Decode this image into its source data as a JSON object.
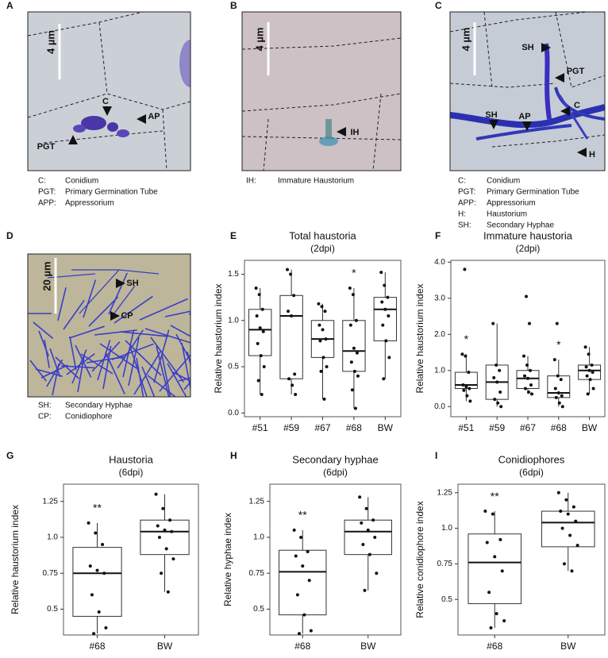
{
  "panels": [
    {
      "label": "A",
      "scale": "4 µm",
      "annotations": [
        "C",
        "AP",
        "PGT"
      ],
      "legend": [
        [
          "C:",
          "Conidium"
        ],
        [
          "PGT:",
          "Primary Germination Tube"
        ],
        [
          "APP:",
          "Appressorium"
        ]
      ]
    },
    {
      "label": "B",
      "scale": "4 µm",
      "annotations": [
        "IH"
      ],
      "legend": [
        [
          "IH:",
          "Immature Haustorium"
        ]
      ]
    },
    {
      "label": "C",
      "scale": "4 µm",
      "annotations": [
        "SH",
        "PGT",
        "C",
        "SH",
        "AP",
        "H"
      ],
      "legend": [
        [
          "C:",
          "Conidium"
        ],
        [
          "PGT:",
          "Primary Germination Tube"
        ],
        [
          "APP:",
          "Appressorium"
        ],
        [
          "H:",
          "Haustorium"
        ],
        [
          "SH:",
          "Secondary Hyphae"
        ]
      ]
    },
    {
      "label": "D",
      "scale": "20 µm",
      "annotations": [
        "SH",
        "CP"
      ],
      "legend": [
        [
          "SH:",
          "Secondary Hyphae"
        ],
        [
          "CP:",
          "Conidiophore"
        ]
      ]
    }
  ],
  "chart_data": [
    {
      "type": "box",
      "panel": "E",
      "title": "Total haustoria",
      "subtitle": "(2dpi)",
      "ylabel": "Relative haustorium index",
      "categories": [
        "#51",
        "#59",
        "#67",
        "#68",
        "BW"
      ],
      "boxes": [
        {
          "whislo": 0.2,
          "q1": 0.62,
          "med": 0.9,
          "q3": 1.12,
          "whishi": 1.35,
          "points": [
            1.35,
            1.28,
            1.12,
            1.05,
            0.92,
            0.88,
            0.75,
            0.62,
            0.5,
            0.35,
            0.2
          ]
        },
        {
          "whislo": 0.2,
          "q1": 0.37,
          "med": 1.05,
          "q3": 1.27,
          "whishi": 1.55,
          "points": [
            1.55,
            1.5,
            1.27,
            1.1,
            1.05,
            0.42,
            0.37,
            0.3,
            0.2
          ]
        },
        {
          "whislo": 0.15,
          "q1": 0.6,
          "med": 0.8,
          "q3": 1.0,
          "whishi": 1.18,
          "points": [
            1.18,
            1.15,
            1.1,
            0.95,
            0.9,
            0.8,
            0.78,
            0.6,
            0.5,
            0.45,
            0.15
          ]
        },
        {
          "whislo": 0.05,
          "q1": 0.45,
          "med": 0.67,
          "q3": 1.0,
          "whishi": 1.35,
          "points": [
            1.35,
            1.28,
            1.0,
            0.95,
            0.7,
            0.65,
            0.55,
            0.45,
            0.4,
            0.25,
            0.05
          ]
        },
        {
          "whislo": 0.37,
          "q1": 0.78,
          "med": 1.12,
          "q3": 1.25,
          "whishi": 1.52,
          "points": [
            1.52,
            1.38,
            1.25,
            1.2,
            1.12,
            1.05,
            0.95,
            0.78,
            0.6,
            0.37
          ]
        }
      ],
      "significance": [
        null,
        null,
        null,
        "*",
        null
      ],
      "significance_color": "#e0342b",
      "ylim": [
        -0.04,
        1.65
      ],
      "yticks": [
        {
          "value": 0,
          "label": "0.0"
        },
        0.5,
        {
          "value": 1,
          "label": "1.0"
        },
        1.5
      ]
    },
    {
      "type": "box",
      "panel": "F",
      "title": "Immature haustoria",
      "subtitle": "(2dpi)",
      "ylabel": "Relative haustorium index",
      "categories": [
        "#51",
        "#59",
        "#67",
        "#68",
        "BW"
      ],
      "boxes": [
        {
          "whislo": 0.15,
          "q1": 0.5,
          "med": 0.6,
          "q3": 0.95,
          "whishi": 1.45,
          "points": [
            1.45,
            1.4,
            0.95,
            0.6,
            0.55,
            0.5,
            0.45,
            0.3,
            0.15,
            3.8
          ]
        },
        {
          "whislo": 0,
          "q1": 0.2,
          "med": 0.68,
          "q3": 1.15,
          "whishi": 2.3,
          "points": [
            2.3,
            1.15,
            1.0,
            0.8,
            0.68,
            0.4,
            0.2,
            0.1,
            0
          ]
        },
        {
          "whislo": 0.35,
          "q1": 0.5,
          "med": 0.78,
          "q3": 1.0,
          "whishi": 1.4,
          "points": [
            1.4,
            1.15,
            1.0,
            0.85,
            0.78,
            0.6,
            0.5,
            0.4,
            0.35,
            3.05,
            2.3
          ]
        },
        {
          "whislo": 0,
          "q1": 0.25,
          "med": 0.38,
          "q3": 0.85,
          "whishi": 1.3,
          "points": [
            1.3,
            0.85,
            0.75,
            0.5,
            0.38,
            0.3,
            0.25,
            0.1,
            0,
            2.3
          ]
        },
        {
          "whislo": 0.35,
          "q1": 0.75,
          "med": 1.0,
          "q3": 1.15,
          "whishi": 1.65,
          "points": [
            1.65,
            1.45,
            1.15,
            1.1,
            1.0,
            0.95,
            0.85,
            0.75,
            0.5,
            0.35
          ]
        }
      ],
      "significance": [
        "*",
        null,
        null,
        "*",
        null
      ],
      "significance_color": "#e0342b",
      "ylim": [
        -0.28,
        4.05
      ],
      "yticks": [
        {
          "value": 0,
          "label": "0.0"
        },
        {
          "value": 1,
          "label": "1.0"
        },
        {
          "value": 2,
          "label": "2.0"
        },
        {
          "value": 3,
          "label": "3.0"
        },
        {
          "value": 4,
          "label": "4.0"
        }
      ]
    },
    {
      "type": "box",
      "panel": "G",
      "title": "Haustoria",
      "subtitle": "(6dpi)",
      "ylabel": "Relative haustorium index",
      "categories": [
        "#68",
        "BW"
      ],
      "boxes": [
        {
          "whislo": 0.33,
          "q1": 0.45,
          "med": 0.75,
          "q3": 0.93,
          "whishi": 1.1,
          "points": [
            1.1,
            1.03,
            0.95,
            0.8,
            0.77,
            0.75,
            0.6,
            0.48,
            0.37,
            0.33
          ]
        },
        {
          "whislo": 0.62,
          "q1": 0.88,
          "med": 1.04,
          "q3": 1.12,
          "whishi": 1.3,
          "points": [
            1.3,
            1.2,
            1.12,
            1.08,
            1.05,
            1.04,
            1.0,
            0.92,
            0.85,
            0.75,
            0.62
          ]
        }
      ],
      "significance": [
        "**",
        null
      ],
      "significance_color": "#e0342b",
      "ylim": [
        0.32,
        1.37
      ],
      "yticks": [
        0.5,
        0.75,
        {
          "value": 1,
          "label": "1.0"
        },
        1.25
      ]
    },
    {
      "type": "box",
      "panel": "H",
      "title": "Secondary hyphae",
      "subtitle": "(6dpi)",
      "ylabel": "Relative hyphae index",
      "categories": [
        "#68",
        "BW"
      ],
      "boxes": [
        {
          "whislo": 0.33,
          "q1": 0.46,
          "med": 0.76,
          "q3": 0.91,
          "whishi": 1.05,
          "points": [
            1.05,
            1.0,
            0.9,
            0.87,
            0.8,
            0.7,
            0.6,
            0.46,
            0.35,
            0.33
          ]
        },
        {
          "whislo": 0.63,
          "q1": 0.88,
          "med": 1.04,
          "q3": 1.12,
          "whishi": 1.28,
          "points": [
            1.28,
            1.2,
            1.12,
            1.1,
            1.05,
            1.0,
            0.95,
            0.88,
            0.75,
            0.63
          ]
        }
      ],
      "significance": [
        "**",
        null
      ],
      "significance_color": "#e0342b",
      "ylim": [
        0.32,
        1.37
      ],
      "yticks": [
        0.5,
        0.75,
        {
          "value": 1,
          "label": "1.0"
        },
        1.25
      ]
    },
    {
      "type": "box",
      "panel": "I",
      "title": "Conidiophores",
      "subtitle": "(6dpi)",
      "ylabel": "Relative conidiophore index",
      "categories": [
        "#68",
        "BW"
      ],
      "boxes": [
        {
          "whislo": 0.3,
          "q1": 0.47,
          "med": 0.76,
          "q3": 0.96,
          "whishi": 1.12,
          "points": [
            1.12,
            1.1,
            0.92,
            0.9,
            0.8,
            0.7,
            0.55,
            0.4,
            0.35,
            0.3
          ]
        },
        {
          "whislo": 0.7,
          "q1": 0.87,
          "med": 1.04,
          "q3": 1.12,
          "whishi": 1.25,
          "points": [
            1.25,
            1.2,
            1.15,
            1.12,
            1.1,
            1.05,
            1.0,
            0.95,
            0.88,
            0.75,
            0.7
          ]
        }
      ],
      "significance": [
        "**",
        null
      ],
      "significance_color": "#e0342b",
      "ylim": [
        0.25,
        1.31
      ],
      "yticks": [
        0.5,
        0.75,
        {
          "value": 1,
          "label": "1.0"
        },
        1.25
      ]
    }
  ]
}
